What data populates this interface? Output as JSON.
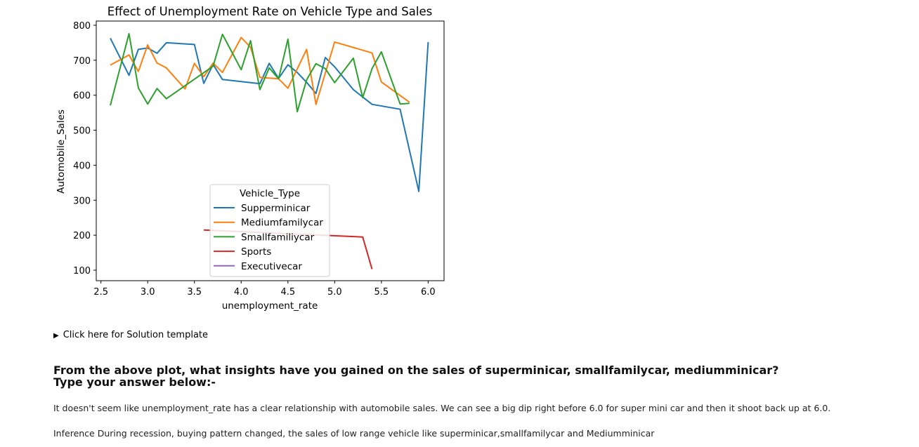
{
  "chart_data": {
    "type": "line",
    "title": "Effect of Unemployment Rate on Vehicle Type and Sales",
    "xlabel": "unemployment_rate",
    "ylabel": "Automobile_Sales",
    "xlim": [
      2.45,
      6.17
    ],
    "ylim": [
      70,
      812
    ],
    "xticks": [
      2.5,
      3.0,
      3.5,
      4.0,
      4.5,
      5.0,
      5.5,
      6.0
    ],
    "xtick_labels": [
      "2.5",
      "3.0",
      "3.5",
      "4.0",
      "4.5",
      "5.0",
      "5.5",
      "6.0"
    ],
    "yticks": [
      100,
      200,
      300,
      400,
      500,
      600,
      700,
      800
    ],
    "ytick_labels": [
      "100",
      "200",
      "300",
      "400",
      "500",
      "600",
      "700",
      "800"
    ],
    "grid": false,
    "legend": {
      "title": "Vehicle_Type",
      "placement": "lower-center",
      "entries": [
        "Supperminicar",
        "Mediumfamilycar",
        "Smallfamiliycar",
        "Sports",
        "Executivecar"
      ]
    },
    "series": [
      {
        "name": "Supperminicar",
        "color": "#1f77b4",
        "x": [
          2.6,
          2.8,
          2.9,
          3.0,
          3.1,
          3.2,
          3.5,
          3.6,
          3.7,
          3.8,
          4.2,
          4.3,
          4.4,
          4.5,
          4.6,
          4.7,
          4.8,
          4.9,
          5.0,
          5.2,
          5.4,
          5.7,
          5.9,
          6.0
        ],
        "y": [
          763,
          657,
          731,
          735,
          720,
          750,
          745,
          634,
          688,
          645,
          633,
          691,
          648,
          687,
          665,
          637,
          605,
          708,
          681,
          616,
          574,
          560,
          325,
          752
        ]
      },
      {
        "name": "Mediumfamilycar",
        "color": "#ff7f0e",
        "x": [
          2.6,
          2.8,
          2.9,
          3.0,
          3.1,
          3.2,
          3.4,
          3.5,
          3.6,
          3.7,
          3.8,
          4.0,
          4.1,
          4.2,
          4.4,
          4.5,
          4.7,
          4.8,
          5.0,
          5.4,
          5.5,
          5.8
        ],
        "y": [
          686,
          715,
          668,
          744,
          692,
          678,
          618,
          691,
          653,
          692,
          665,
          765,
          737,
          651,
          647,
          620,
          731,
          574,
          752,
          721,
          638,
          580
        ]
      },
      {
        "name": "Smallfamiliycar",
        "color": "#2ca02c",
        "x": [
          2.6,
          2.8,
          2.9,
          3.0,
          3.1,
          3.2,
          3.5,
          3.7,
          3.8,
          4.0,
          4.1,
          4.2,
          4.3,
          4.4,
          4.5,
          4.6,
          4.7,
          4.8,
          4.9,
          5.0,
          5.2,
          5.3,
          5.4,
          5.5,
          5.7,
          5.8
        ],
        "y": [
          571,
          776,
          621,
          575,
          619,
          590,
          646,
          683,
          774,
          673,
          756,
          616,
          678,
          647,
          760,
          553,
          644,
          690,
          676,
          636,
          706,
          593,
          676,
          724,
          575,
          577
        ]
      },
      {
        "name": "Sports",
        "color": "#d62728",
        "x": [
          3.6,
          5.3,
          5.4
        ],
        "y": [
          215,
          195,
          103
        ]
      },
      {
        "name": "Executivecar",
        "color": "#9467bd",
        "x": [],
        "y": []
      }
    ]
  },
  "details": {
    "label": "Click here for Solution template"
  },
  "question": {
    "line1": "From the above plot, what insights have you gained on the sales of superminicar, smallfamilycar, mediumminicar?",
    "line2": "Type your answer below:-"
  },
  "answer": {
    "paragraph1": "It doesn't seem like unemployment_rate has a clear relationship with automobile sales. We can see a big dip right before 6.0 for super mini car and then it shoot back up at 6.0.",
    "paragraph2": "Inference During recession, buying pattern changed, the sales of low range vehicle like superminicar,smallfamilycar and Mediumminicar"
  }
}
